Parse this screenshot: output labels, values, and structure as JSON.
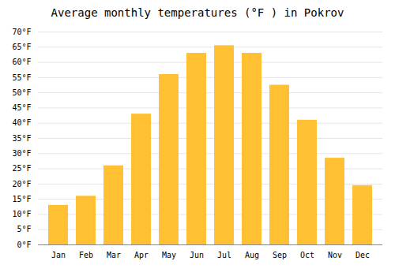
{
  "chart_data": {
    "type": "bar",
    "title": "Average monthly temperatures (°F ) in Pokrov",
    "categories": [
      "Jan",
      "Feb",
      "Mar",
      "Apr",
      "May",
      "Jun",
      "Jul",
      "Aug",
      "Sep",
      "Oct",
      "Nov",
      "Dec"
    ],
    "values": [
      13,
      16,
      26,
      43,
      56,
      63,
      65.5,
      63,
      52.5,
      41,
      28.5,
      19.5
    ],
    "color": "#FFC133",
    "ylim": [
      0,
      70
    ],
    "yticks": [
      {
        "value": 0,
        "label": "0°F"
      },
      {
        "value": 5,
        "label": "5°F"
      },
      {
        "value": 10,
        "label": "10°F"
      },
      {
        "value": 15,
        "label": "15°F"
      },
      {
        "value": 20,
        "label": "20°F"
      },
      {
        "value": 25,
        "label": "25°F"
      },
      {
        "value": 30,
        "label": "30°F"
      },
      {
        "value": 35,
        "label": "35°F"
      },
      {
        "value": 40,
        "label": "40°F"
      },
      {
        "value": 45,
        "label": "45°F"
      },
      {
        "value": 50,
        "label": "50°F"
      },
      {
        "value": 55,
        "label": "55°F"
      },
      {
        "value": 60,
        "label": "60°F"
      },
      {
        "value": 65,
        "label": "65°F"
      },
      {
        "value": 70,
        "label": "70°F"
      }
    ],
    "grid": true
  }
}
